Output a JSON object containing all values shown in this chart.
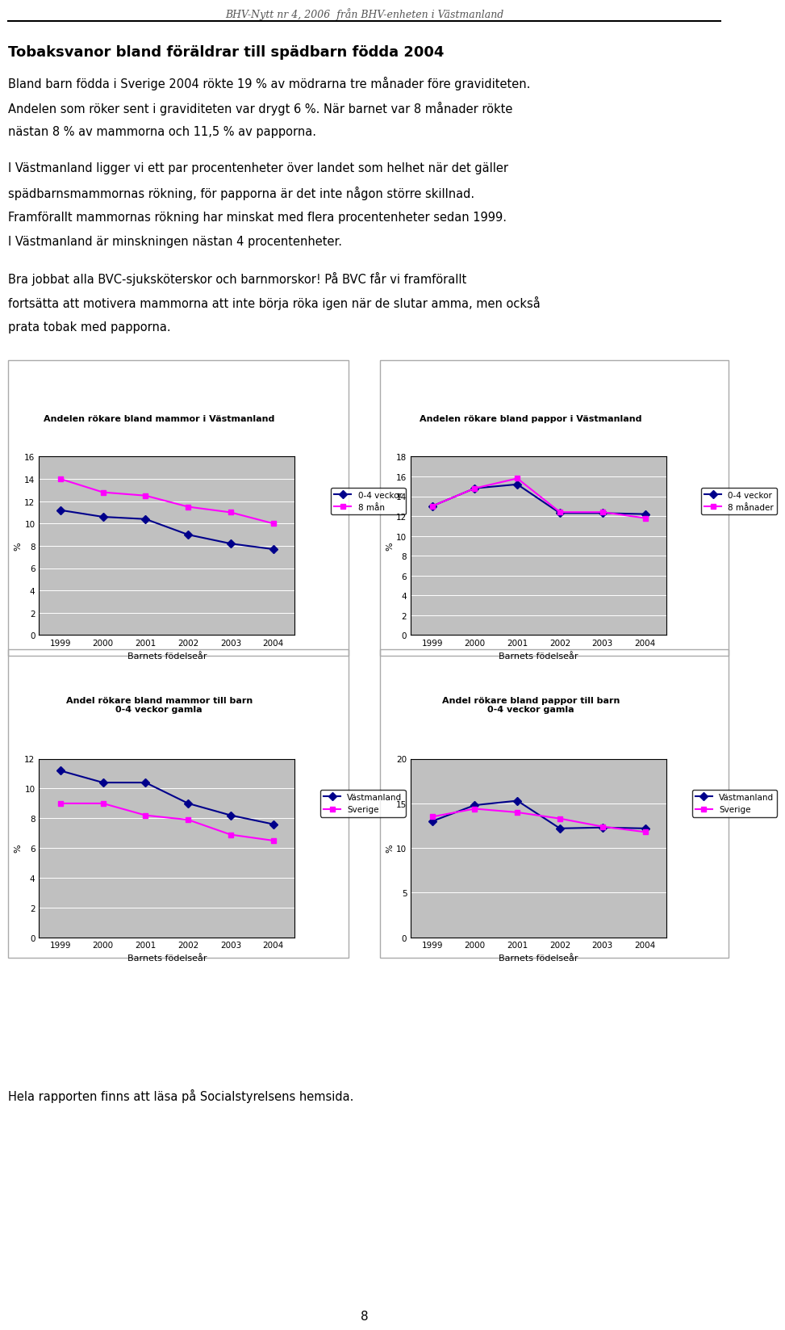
{
  "header_text": "BHV-Nytt nr 4, 2006  från BHV-enheten i Västmanland",
  "title": "Tobaksvanor bland föräldrar till spädbarn födda 2004",
  "para1": "Bland barn födda i Sverige 2004 rökte 19 % av mödrarna tre månader före graviditeten. Andelen som röker sent i graviditeten var drygt 6 %. När barnet var 8 månader rökte nästan 8 % av mammorna och 11,5 % av papporna.",
  "para2": "I Västmanland ligger vi ett par procentenheter över landet som helhet när det gäller spädbarnsmammornas rökning, för papporna är det inte någon större skillnad. Framförallt mammornas rökning har minskat med flera procentenheter sedan 1999. I Västmanland är minskningen nästan 4 procentenheter.",
  "para3": "Bra jobbat alla BVC-sjuksköterskor och barnmorskor! På BVC får vi framförallt fortsätta att motivera mammorna att inte börja röka igen när de slutar amma, men också prata tobak med papporna.",
  "footer_text": "Hela rapporten finns att läsa på Socialstyrelsens hemsida.",
  "page_number": "8",
  "years": [
    1999,
    2000,
    2001,
    2002,
    2003,
    2004
  ],
  "chart1": {
    "title": "Andelen rökare bland mammor i Västmanland",
    "ylabel": "%",
    "xlabel": "Barnets födelseår",
    "ylim": [
      0,
      16
    ],
    "yticks": [
      0,
      2,
      4,
      6,
      8,
      10,
      12,
      14,
      16
    ],
    "series1_label": "0-4 veckor",
    "series1_color": "#00008B",
    "series1_values": [
      11.2,
      10.6,
      10.4,
      9.0,
      8.2,
      7.7
    ],
    "series2_label": "8 mån",
    "series2_color": "#FF00FF",
    "series2_values": [
      14.0,
      12.8,
      12.5,
      11.5,
      11.0,
      10.0
    ]
  },
  "chart2": {
    "title": "Andelen rökare bland pappor i Västmanland",
    "ylabel": "%",
    "xlabel": "Barnets födelseår",
    "ylim": [
      0,
      18
    ],
    "yticks": [
      0,
      2,
      4,
      6,
      8,
      10,
      12,
      14,
      16,
      18
    ],
    "series1_label": "0-4 veckor",
    "series1_color": "#00008B",
    "series1_values": [
      13.0,
      14.8,
      15.2,
      12.3,
      12.3,
      12.2
    ],
    "series2_label": "8 månader",
    "series2_color": "#FF00FF",
    "series2_values": [
      13.0,
      14.8,
      15.8,
      12.4,
      12.4,
      11.8
    ]
  },
  "chart3": {
    "title": "Andel rökare bland mammor till barn\n0-4 veckor gamla",
    "ylabel": "%",
    "xlabel": "Barnets födelseår",
    "ylim": [
      0,
      12
    ],
    "yticks": [
      0,
      2,
      4,
      6,
      8,
      10,
      12
    ],
    "series1_label": "Västmanland",
    "series1_color": "#00008B",
    "series1_values": [
      11.2,
      10.4,
      10.4,
      9.0,
      8.2,
      7.6
    ],
    "series2_label": "Sverige",
    "series2_color": "#FF00FF",
    "series2_values": [
      9.0,
      9.0,
      8.2,
      7.9,
      6.9,
      6.5
    ]
  },
  "chart4": {
    "title": "Andel rökare bland pappor till barn\n0-4 veckor gamla",
    "ylabel": "%",
    "xlabel": "Barnets födelseår",
    "ylim": [
      0,
      20
    ],
    "yticks": [
      0,
      5,
      10,
      15,
      20
    ],
    "series1_label": "Västmanland",
    "series1_color": "#00008B",
    "series1_values": [
      13.0,
      14.8,
      15.3,
      12.2,
      12.3,
      12.2
    ],
    "series2_label": "Sverige",
    "series2_color": "#FF00FF",
    "series2_values": [
      13.5,
      14.4,
      14.0,
      13.3,
      12.4,
      11.8
    ]
  },
  "plot_bg_color": "#C0C0C0",
  "fig_bg_color": "#FFFFFF",
  "box_bg_color": "#FFFFFF",
  "marker_size": 6,
  "line_width": 1.5
}
